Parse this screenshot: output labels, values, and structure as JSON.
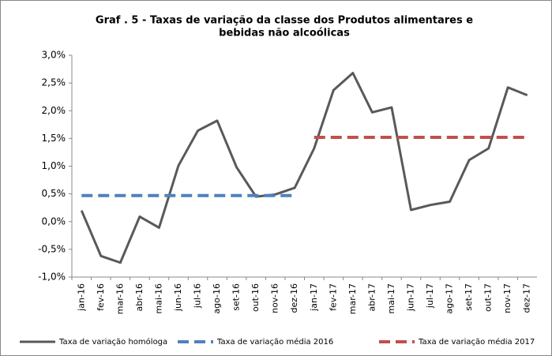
{
  "chart_data": {
    "type": "line",
    "title": [
      "Graf . 5 - Taxas de variação da classe dos Produtos alimentares e",
      "bebidas não alcoólicas"
    ],
    "categories": [
      "jan-16",
      "fev-16",
      "mar-16",
      "abr-16",
      "mai-16",
      "jun-16",
      "jul-16",
      "ago-16",
      "set-16",
      "out-16",
      "nov-16",
      "dez-16",
      "jan-17",
      "fev-17",
      "mar-17",
      "abr-17",
      "mai-17",
      "jun-17",
      "jul-17",
      "ago-17",
      "set-17",
      "out-17",
      "nov-17",
      "dez-17"
    ],
    "series": [
      {
        "name": "Taxa de variação homóloga",
        "color": "#595959",
        "dashed": false,
        "values": [
          0.2,
          -0.62,
          -0.74,
          0.09,
          -0.11,
          1.01,
          1.64,
          1.82,
          0.98,
          0.45,
          0.49,
          0.61,
          1.32,
          2.37,
          2.68,
          1.97,
          2.06,
          0.21,
          0.3,
          0.36,
          1.11,
          1.32,
          2.42,
          2.28
        ]
      },
      {
        "name": "Taxa de variação média 2016",
        "color": "#4f81bd",
        "dashed": true,
        "values": [
          0.47,
          0.47,
          0.47,
          0.47,
          0.47,
          0.47,
          0.47,
          0.47,
          0.47,
          0.47,
          0.47,
          0.47,
          null,
          null,
          null,
          null,
          null,
          null,
          null,
          null,
          null,
          null,
          null,
          null
        ]
      },
      {
        "name": "Taxa de variação média 2017",
        "color": "#c0504d",
        "dashed": true,
        "values": [
          null,
          null,
          null,
          null,
          null,
          null,
          null,
          null,
          null,
          null,
          null,
          null,
          1.52,
          1.52,
          1.52,
          1.52,
          1.52,
          1.52,
          1.52,
          1.52,
          1.52,
          1.52,
          1.52,
          1.52
        ]
      }
    ],
    "ylim": [
      -1,
      3
    ],
    "yticks": [
      {
        "value": -1,
        "label": "-1,0%"
      },
      {
        "value": -0.5,
        "label": "-0,5%"
      },
      {
        "value": 0,
        "label": "0,0%"
      },
      {
        "value": 0.5,
        "label": "0,5%"
      },
      {
        "value": 1,
        "label": "1,0%"
      },
      {
        "value": 1.5,
        "label": "1,5%"
      },
      {
        "value": 2,
        "label": "2,0%"
      },
      {
        "value": 2.5,
        "label": "2,5%"
      },
      {
        "value": 3,
        "label": "3,0%"
      }
    ],
    "grid": false,
    "legend": "bottom"
  }
}
